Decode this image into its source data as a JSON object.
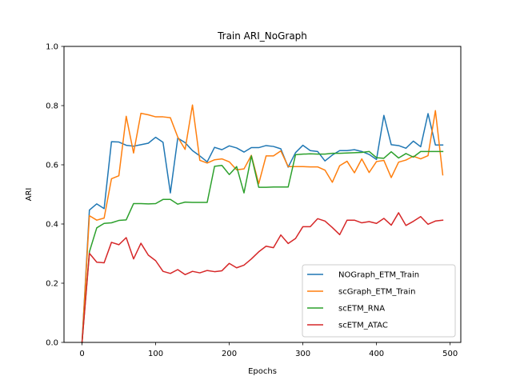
{
  "chart_data": {
    "type": "line",
    "title": "Train ARI_NoGraph",
    "xlabel": "Epochs",
    "ylabel": "ARI",
    "xlim": [
      -24.5,
      514.5
    ],
    "ylim": [
      0.0,
      1.0
    ],
    "xticks": [
      0,
      100,
      200,
      300,
      400,
      500
    ],
    "yticks": [
      0.0,
      0.2,
      0.4,
      0.6,
      0.8,
      1.0
    ],
    "xtick_labels": [
      "0",
      "100",
      "200",
      "300",
      "400",
      "500"
    ],
    "ytick_labels": [
      "0.0",
      "0.2",
      "0.4",
      "0.6",
      "0.8",
      "1.0"
    ],
    "grid": false,
    "legend_position": "lower-right",
    "x": [
      0,
      10,
      20,
      30,
      40,
      50,
      60,
      70,
      80,
      90,
      100,
      110,
      120,
      130,
      140,
      150,
      160,
      170,
      180,
      190,
      200,
      210,
      220,
      230,
      240,
      250,
      260,
      270,
      280,
      290,
      300,
      310,
      320,
      330,
      340,
      350,
      360,
      370,
      380,
      390,
      400,
      410,
      420,
      430,
      440,
      450,
      460,
      470,
      480,
      490
    ],
    "series": [
      {
        "name": "NOGraph_ETM_Train",
        "color": "#1f77b4",
        "values": [
          0.0,
          0.447,
          0.468,
          0.452,
          0.678,
          0.677,
          0.666,
          0.663,
          0.668,
          0.673,
          0.693,
          0.676,
          0.505,
          0.69,
          0.675,
          0.648,
          0.63,
          0.61,
          0.659,
          0.651,
          0.664,
          0.657,
          0.643,
          0.658,
          0.658,
          0.665,
          0.662,
          0.654,
          0.592,
          0.641,
          0.666,
          0.648,
          0.645,
          0.613,
          0.633,
          0.648,
          0.648,
          0.651,
          0.645,
          0.635,
          0.618,
          0.767,
          0.668,
          0.665,
          0.656,
          0.68,
          0.661,
          0.773,
          0.667,
          0.667
        ]
      },
      {
        "name": "scGraph_ETM_Train",
        "color": "#ff7f0e",
        "values": [
          0.0,
          0.428,
          0.413,
          0.42,
          0.553,
          0.563,
          0.764,
          0.64,
          0.774,
          0.769,
          0.762,
          0.762,
          0.759,
          0.694,
          0.652,
          0.802,
          0.615,
          0.606,
          0.617,
          0.62,
          0.61,
          0.583,
          0.586,
          0.632,
          0.536,
          0.63,
          0.63,
          0.647,
          0.594,
          0.594,
          0.594,
          0.593,
          0.593,
          0.582,
          0.541,
          0.597,
          0.612,
          0.573,
          0.62,
          0.574,
          0.611,
          0.615,
          0.557,
          0.609,
          0.616,
          0.629,
          0.62,
          0.631,
          0.783,
          0.566
        ]
      },
      {
        "name": "scETM_RNA",
        "color": "#2ca02c",
        "values": [
          0.0,
          0.306,
          0.387,
          0.402,
          0.404,
          0.412,
          0.414,
          0.469,
          0.469,
          0.468,
          0.469,
          0.483,
          0.483,
          0.467,
          0.474,
          0.473,
          0.473,
          0.473,
          0.595,
          0.598,
          0.567,
          0.594,
          0.505,
          0.63,
          0.524,
          0.524,
          0.525,
          0.525,
          0.525,
          0.634,
          0.636,
          0.637,
          0.636,
          0.636,
          0.639,
          0.639,
          0.64,
          0.641,
          0.642,
          0.645,
          0.624,
          0.622,
          0.644,
          0.623,
          0.638,
          0.626,
          0.645,
          0.645,
          0.645,
          0.645
        ]
      },
      {
        "name": "scETM_ATAC",
        "color": "#d62728",
        "values": [
          0.0,
          0.301,
          0.271,
          0.269,
          0.338,
          0.33,
          0.354,
          0.282,
          0.335,
          0.295,
          0.276,
          0.24,
          0.233,
          0.246,
          0.229,
          0.24,
          0.235,
          0.243,
          0.239,
          0.242,
          0.267,
          0.252,
          0.261,
          0.282,
          0.306,
          0.325,
          0.32,
          0.363,
          0.334,
          0.351,
          0.391,
          0.391,
          0.418,
          0.41,
          0.388,
          0.364,
          0.413,
          0.413,
          0.404,
          0.408,
          0.402,
          0.419,
          0.396,
          0.438,
          0.395,
          0.409,
          0.425,
          0.399,
          0.41,
          0.413
        ]
      }
    ]
  }
}
